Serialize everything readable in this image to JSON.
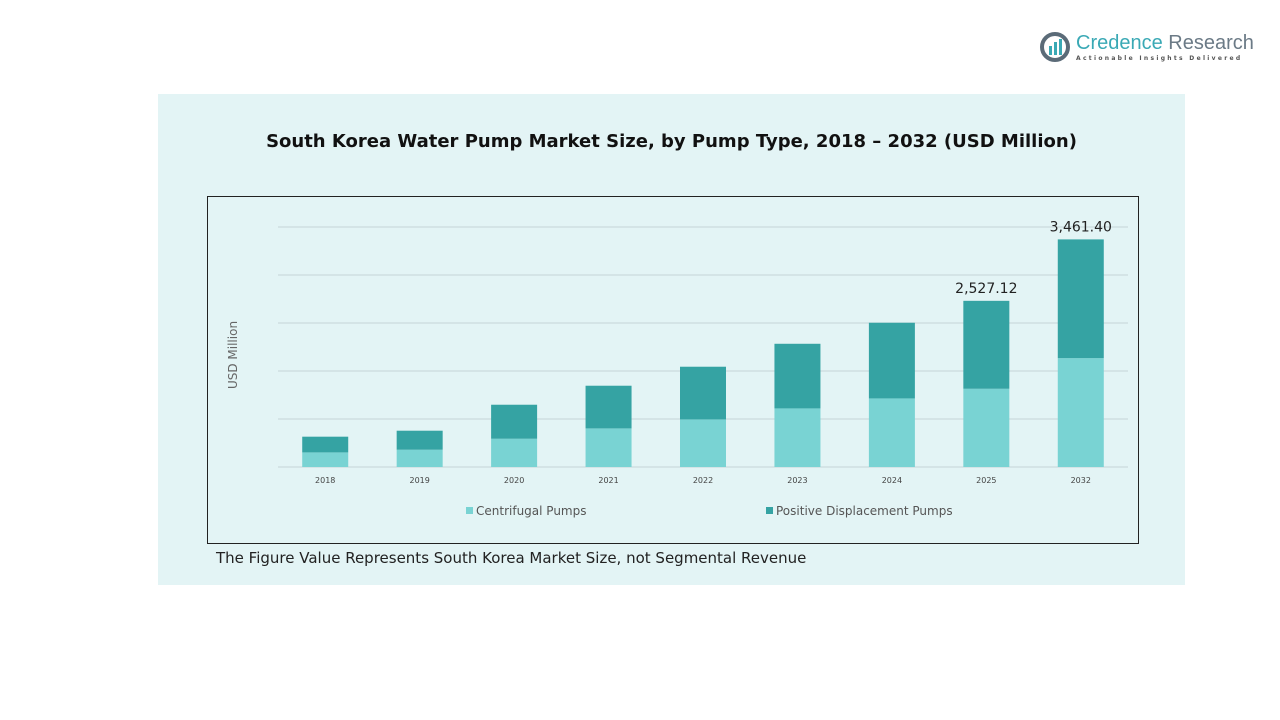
{
  "brand": {
    "name_part1": "Credence",
    "name_part2": " Research",
    "tagline": "Actionable Insights Delivered"
  },
  "footnote": "The Figure Value Represents South Korea Market Size, not Segmental Revenue",
  "colors": {
    "panel": "#e3f4f5",
    "centrifugal": "#79d3d3",
    "positive_displacement": "#35a3a3"
  },
  "chart_data": {
    "type": "bar",
    "stacked": true,
    "title": "South Korea Water Pump Market Size, by Pump Type, 2018 – 2032 (USD Million)",
    "xlabel": "",
    "ylabel": "USD Million",
    "ylim": [
      0,
      3800
    ],
    "grid": true,
    "legend": "bottom",
    "categories": [
      "2018",
      "2019",
      "2020",
      "2021",
      "2022",
      "2023",
      "2024",
      "2025",
      "2032"
    ],
    "series": [
      {
        "name": "Centrifugal Pumps",
        "color": "#79d3d3",
        "values": [
          222,
          263,
          430,
          587,
          724,
          891,
          1043,
          1190,
          1656
        ]
      },
      {
        "name": "Positive Displacement Pumps",
        "color": "#35a3a3",
        "values": [
          239,
          289,
          517,
          649,
          801,
          983,
          1151,
          1337.12,
          1805.4
        ]
      }
    ],
    "data_labels": [
      {
        "category": "2025",
        "text": "2,527.12"
      },
      {
        "category": "2032",
        "text": "3,461.40"
      }
    ]
  }
}
